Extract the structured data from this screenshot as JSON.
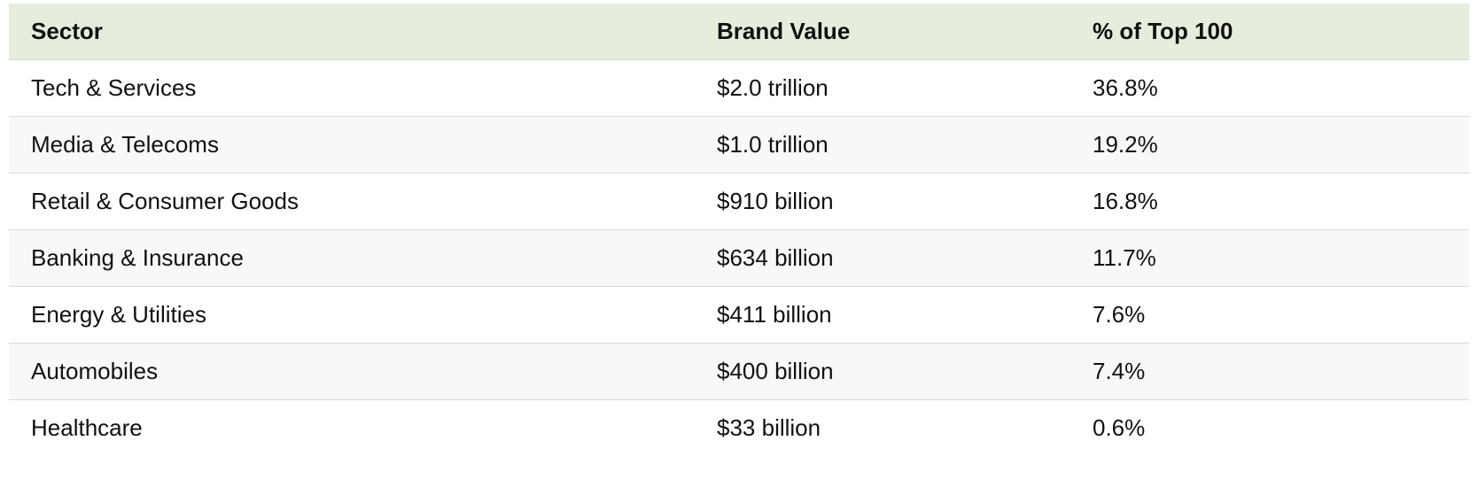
{
  "table": {
    "columns": [
      "Sector",
      "Brand Value",
      "% of Top 100"
    ],
    "rows": [
      {
        "sector": "Tech & Services",
        "brand_value": "$2.0 trillion",
        "share": "36.8%"
      },
      {
        "sector": "Media & Telecoms",
        "brand_value": "$1.0 trillion",
        "share": "19.2%"
      },
      {
        "sector": "Retail & Consumer Goods",
        "brand_value": "$910 billion",
        "share": "16.8%"
      },
      {
        "sector": "Banking & Insurance",
        "brand_value": "$634 billion",
        "share": "11.7%"
      },
      {
        "sector": "Energy & Utilities",
        "brand_value": "$411 billion",
        "share": "7.6%"
      },
      {
        "sector": "Automobiles",
        "brand_value": "$400 billion",
        "share": "7.4%"
      },
      {
        "sector": "Healthcare",
        "brand_value": "$33 billion",
        "share": "0.6%"
      }
    ]
  },
  "colors": {
    "header_background": "#e5eedc",
    "stripe_background": "#f8f8f8",
    "row_divider": "#dadada"
  }
}
